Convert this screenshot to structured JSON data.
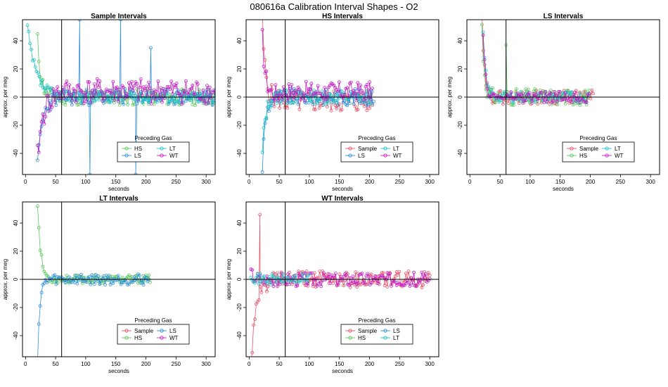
{
  "page": {
    "title": "080616a   Calibration Interval Shapes - O2"
  },
  "colors": {
    "Sample": "#e8546a",
    "HS": "#5cc85c",
    "LS": "#2e8fd8",
    "LT": "#22c4c4",
    "WT": "#c21fc2",
    "axis": "#000000"
  },
  "chart_data": [
    {
      "type": "line",
      "title": "Sample Intervals",
      "xlabel": "seconds",
      "ylabel": "approx. per meg",
      "xlim": [
        -5,
        315
      ],
      "ylim": [
        -55,
        55
      ],
      "xticks": [
        0,
        50,
        100,
        150,
        200,
        250,
        300
      ],
      "yticks": [
        -40,
        -20,
        0,
        20,
        40
      ],
      "hline": 0,
      "vline": 60,
      "legend": {
        "title": "Preceding Gas",
        "position": "bottom-center",
        "entries": [
          "HS",
          "LT",
          "LS",
          "WT"
        ]
      },
      "series": [
        {
          "name": "HS",
          "x_start": 20,
          "x_end": 315,
          "noise": 6,
          "init": 40,
          "decay": 6,
          "seed": 11
        },
        {
          "name": "LS",
          "x_start": 20,
          "x_end": 315,
          "noise": 6,
          "init": -50,
          "decay": 8,
          "seed": 23,
          "spikes": [
            {
              "x": 90,
              "y": 55
            },
            {
              "x": 107,
              "y": -55
            },
            {
              "x": 158,
              "y": 55
            },
            {
              "x": 183,
              "y": -55
            },
            {
              "x": 208,
              "y": 35
            }
          ]
        },
        {
          "name": "LT",
          "x_start": 3,
          "x_end": 315,
          "noise": 4,
          "init": 50,
          "decay": 14,
          "seed": 37
        },
        {
          "name": "WT",
          "x_start": 20,
          "x_end": 315,
          "noise": 9,
          "init": -45,
          "decay": 9,
          "offset": 4,
          "seed": 41
        }
      ]
    },
    {
      "type": "line",
      "title": "HS Intervals",
      "xlabel": "seconds",
      "ylabel": "approx. per meg",
      "xlim": [
        -5,
        315
      ],
      "ylim": [
        -55,
        55
      ],
      "xticks": [
        0,
        50,
        100,
        150,
        200,
        250,
        300
      ],
      "yticks": [
        -40,
        -20,
        0,
        20,
        40
      ],
      "hline": 0,
      "vline": 60,
      "legend": {
        "title": "Preceding Gas",
        "position": "bottom-center",
        "entries": [
          "Sample",
          "LT",
          "LS",
          "WT"
        ]
      },
      "series": [
        {
          "name": "Sample",
          "x_start": 22,
          "x_end": 205,
          "noise": 8,
          "init": 55,
          "decay": 5,
          "offset": -3,
          "seed": 5
        },
        {
          "name": "LS",
          "x_start": 22,
          "x_end": 208,
          "noise": 6,
          "init": -50,
          "decay": 5,
          "seed": 9
        },
        {
          "name": "LT",
          "x_start": 22,
          "x_end": 205,
          "noise": 5,
          "init": -40,
          "decay": 5,
          "seed": 13
        },
        {
          "name": "WT",
          "x_start": 22,
          "x_end": 205,
          "noise": 7,
          "init": 40,
          "decay": 5,
          "offset": 4,
          "seed": 17
        }
      ]
    },
    {
      "type": "line",
      "title": "LS Intervals",
      "xlabel": "seconds",
      "ylabel": "approx. per meg",
      "xlim": [
        -5,
        315
      ],
      "ylim": [
        -55,
        55
      ],
      "xticks": [
        0,
        50,
        100,
        150,
        200,
        250,
        300
      ],
      "yticks": [
        -40,
        -20,
        0,
        20,
        40
      ],
      "hline": 0,
      "vline": 60,
      "legend": {
        "title": "Preceding Gas",
        "position": "bottom-right",
        "entries": [
          "Sample",
          "LT",
          "HS",
          "WT"
        ]
      },
      "series": [
        {
          "name": "Sample",
          "x_start": 20,
          "x_end": 205,
          "noise": 5,
          "init": 55,
          "decay": 4,
          "seed": 29
        },
        {
          "name": "HS",
          "x_start": 20,
          "x_end": 200,
          "noise": 6,
          "init": 50,
          "decay": 4,
          "seed": 31,
          "spikes": [
            {
              "x": 60,
              "y": 37
            }
          ]
        },
        {
          "name": "LT",
          "x_start": 22,
          "x_end": 200,
          "noise": 4,
          "init": 45,
          "decay": 4,
          "seed": 43
        },
        {
          "name": "WT",
          "x_start": 22,
          "x_end": 200,
          "noise": 4,
          "init": 40,
          "decay": 4,
          "seed": 47
        }
      ]
    },
    {
      "type": "line",
      "title": "LT Intervals",
      "xlabel": "seconds",
      "ylabel": "approx. per meg",
      "xlim": [
        -5,
        315
      ],
      "ylim": [
        -55,
        55
      ],
      "xticks": [
        0,
        50,
        100,
        150,
        200,
        250,
        300
      ],
      "yticks": [
        -40,
        -20,
        0,
        20,
        40
      ],
      "hline": 0,
      "vline": 60,
      "legend": {
        "title": "Preceding Gas",
        "position": "bottom-center",
        "entries": [
          "Sample",
          "LS",
          "HS",
          "WT"
        ]
      },
      "series": [
        {
          "name": "HS",
          "x_start": 20,
          "x_end": 208,
          "noise": 3,
          "init": 55,
          "decay": 5,
          "seed": 53
        },
        {
          "name": "LS",
          "x_start": 20,
          "x_end": 205,
          "noise": 4,
          "init": -55,
          "decay": 4,
          "seed": 59
        }
      ]
    },
    {
      "type": "line",
      "title": "WT Intervals",
      "xlabel": "seconds",
      "ylabel": "approx. per meg",
      "xlim": [
        -5,
        315
      ],
      "ylim": [
        -55,
        55
      ],
      "xticks": [
        0,
        50,
        100,
        150,
        200,
        250,
        300
      ],
      "yticks": [
        -40,
        -20,
        0,
        20,
        40
      ],
      "hline": 0,
      "vline": 60,
      "legend": {
        "title": "Preceding Gas",
        "position": "bottom-center",
        "entries": [
          "Sample",
          "LS",
          "HS",
          "LT"
        ]
      },
      "series": [
        {
          "name": "Sample",
          "x_start": 3,
          "x_end": 300,
          "noise": 6,
          "init": -60,
          "decay": 9,
          "seed": 61,
          "spikes": [
            {
              "x": 18,
              "y": 46
            }
          ]
        },
        {
          "name": "WT",
          "x_start": 3,
          "x_end": 300,
          "noise": 5,
          "init": 5,
          "decay": 5,
          "seed": 67
        },
        {
          "name": "LT",
          "x_start": 3,
          "x_end": 100,
          "noise": 4,
          "init": 5,
          "decay": 5,
          "seed": 71
        }
      ]
    }
  ]
}
